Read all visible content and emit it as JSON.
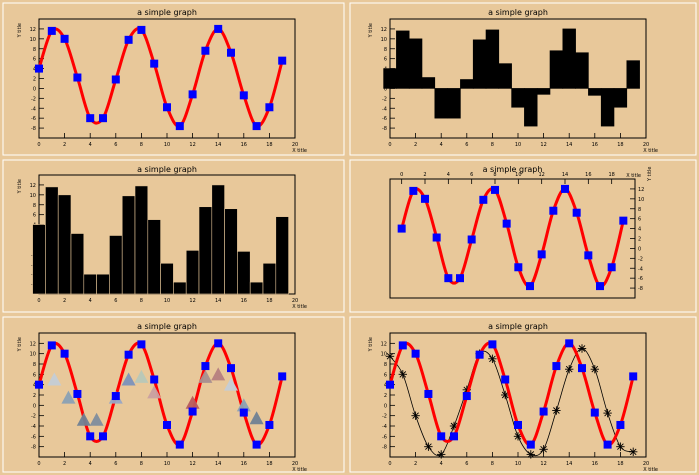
{
  "canvas": {
    "background": "#e8c89a",
    "frame_color": "#ffffff"
  },
  "style": {
    "curve_color": "#ff0000",
    "marker_color": "#0000ff",
    "bar_color": "#000000",
    "star_color": "#000000",
    "triangle_colors": [
      "#c4ced6",
      "#8aa1b4",
      "#6f8193",
      "#7f8d9d",
      "#98a6c5",
      "#7b92bb",
      "#b7c8b8",
      "#c9a0a0",
      "#b85c5c",
      "#a88f8f",
      "#b68080"
    ]
  },
  "chart_data": [
    {
      "type": "line",
      "title": "a simple graph",
      "xlabel": "X title",
      "ylabel": "Y title",
      "xlim": [
        0,
        20
      ],
      "ylim": [
        -10,
        14
      ],
      "xticks": [
        "0",
        "2",
        "4",
        "6",
        "8",
        "10",
        "12",
        "14",
        "16",
        "18",
        "20"
      ],
      "yticks": [
        "-8",
        "-6",
        "-4",
        "-2",
        "0",
        "2",
        "4",
        "6",
        "8",
        "10",
        "12"
      ],
      "x": [
        0.0,
        1.0,
        2.0,
        3.0,
        4.0,
        5.0,
        6.0,
        7.0,
        8.0,
        9.0,
        10.0,
        11.0,
        12.0,
        13.0,
        14.0,
        15.0,
        16.0,
        17.0,
        18.0,
        19.0
      ],
      "y": [
        4.0,
        11.6,
        10.0,
        2.2,
        -6.0,
        -6.0,
        1.8,
        9.8,
        11.8,
        5.0,
        -3.8,
        -7.6,
        -1.2,
        7.6,
        12.0,
        7.2,
        -1.4,
        -7.6,
        -3.8,
        5.6
      ],
      "series_style": "smooth red curve with blue square markers"
    },
    {
      "type": "bar",
      "title": "a simple graph",
      "xlabel": "X title",
      "ylabel": "Y title",
      "xlim": [
        0,
        20
      ],
      "ylim": [
        -10,
        14
      ],
      "xticks": [
        "0",
        "2",
        "4",
        "6",
        "8",
        "10",
        "12",
        "14",
        "16",
        "18",
        "20"
      ],
      "yticks": [
        "-8",
        "-6",
        "-4",
        "-2",
        "0",
        "2",
        "4",
        "6",
        "8",
        "10",
        "12"
      ],
      "x": [
        0.0,
        1.0,
        2.0,
        3.0,
        4.0,
        5.0,
        6.0,
        7.0,
        8.0,
        9.0,
        10.0,
        11.0,
        12.0,
        13.0,
        14.0,
        15.0,
        16.0,
        17.0,
        18.0,
        19.0
      ],
      "values": [
        4.0,
        11.6,
        10.0,
        2.2,
        -6.0,
        -6.0,
        1.8,
        9.8,
        11.8,
        5.0,
        -3.8,
        -7.6,
        -1.2,
        7.6,
        12.0,
        7.2,
        -1.4,
        -7.6,
        -3.8,
        5.6
      ],
      "bar_base": 0,
      "series_style": "black bars from y=0"
    },
    {
      "type": "bar",
      "title": "a simple graph",
      "xlabel": "X title",
      "ylabel": "Y title",
      "xlim": [
        0,
        20
      ],
      "ylim": [
        -10,
        14
      ],
      "xticks": [
        "0",
        "2",
        "4",
        "6",
        "8",
        "10",
        "12",
        "14",
        "16",
        "18",
        "20"
      ],
      "yticks": [
        "-8",
        "-6",
        "-4",
        "-2",
        "0",
        "2",
        "4",
        "6",
        "8",
        "10",
        "12"
      ],
      "x": [
        0.0,
        1.0,
        2.0,
        3.0,
        4.0,
        5.0,
        6.0,
        7.0,
        8.0,
        9.0,
        10.0,
        11.0,
        12.0,
        13.0,
        14.0,
        15.0,
        16.0,
        17.0,
        18.0,
        19.0
      ],
      "values": [
        4.0,
        11.6,
        10.0,
        2.2,
        -6.0,
        -6.0,
        1.8,
        9.8,
        11.8,
        5.0,
        -3.8,
        -7.6,
        -1.2,
        7.6,
        12.0,
        7.2,
        -1.4,
        -7.6,
        -3.8,
        5.6
      ],
      "bar_base": -10,
      "series_style": "black bars from axis bottom with thin separators"
    },
    {
      "type": "line",
      "title": "a simple graph",
      "xlabel": "X title",
      "ylabel": "Y title",
      "xlim": [
        -1,
        20
      ],
      "ylim": [
        -10,
        14
      ],
      "xaxis_position": "top",
      "yaxis_position": "right",
      "xticks": [
        "0",
        "2",
        "4",
        "6",
        "8",
        "10",
        "12",
        "14",
        "16",
        "18"
      ],
      "yticks": [
        "-8",
        "-6",
        "-4",
        "-2",
        "0",
        "2",
        "4",
        "6",
        "8",
        "10",
        "12"
      ],
      "x": [
        0.0,
        1.0,
        2.0,
        3.0,
        4.0,
        5.0,
        6.0,
        7.0,
        8.0,
        9.0,
        10.0,
        11.0,
        12.0,
        13.0,
        14.0,
        15.0,
        16.0,
        17.0,
        18.0,
        19.0
      ],
      "y": [
        4.0,
        11.6,
        10.0,
        2.2,
        -6.0,
        -6.0,
        1.8,
        9.8,
        11.8,
        5.0,
        -3.8,
        -7.6,
        -1.2,
        7.6,
        12.0,
        7.2,
        -1.4,
        -7.6,
        -3.8,
        5.6
      ],
      "series_style": "smooth red curve with blue square markers"
    },
    {
      "type": "line",
      "title": "a simple graph",
      "xlabel": "X title",
      "ylabel": "Y title",
      "xlim": [
        0,
        20
      ],
      "ylim": [
        -10,
        14
      ],
      "xticks": [
        "0",
        "2",
        "4",
        "6",
        "8",
        "10",
        "12",
        "14",
        "16",
        "18",
        "20"
      ],
      "yticks": [
        "-8",
        "-6",
        "-4",
        "-2",
        "0",
        "2",
        "4",
        "6",
        "8",
        "10",
        "12"
      ],
      "x": [
        0.0,
        1.0,
        2.0,
        3.0,
        4.0,
        5.0,
        6.0,
        7.0,
        8.0,
        9.0,
        10.0,
        11.0,
        12.0,
        13.0,
        14.0,
        15.0,
        16.0,
        17.0,
        18.0,
        19.0
      ],
      "y": [
        4.0,
        11.6,
        10.0,
        2.2,
        -6.0,
        -6.0,
        1.8,
        9.8,
        11.8,
        5.0,
        -3.8,
        -7.6,
        -1.2,
        7.6,
        12.0,
        7.2,
        -1.4,
        -7.6,
        -3.8,
        5.6
      ],
      "series_style": "smooth red curve with blue square markers",
      "scatter": {
        "x": [
          1.2,
          2.3,
          3.5,
          4.5,
          6.0,
          7.0,
          8.0,
          9.0,
          12.0,
          13.0,
          14.0,
          15.0,
          16.0,
          17.0
        ],
        "y": [
          5.0,
          1.5,
          -2.8,
          -2.8,
          1.5,
          5.0,
          5.5,
          2.5,
          0.5,
          5.5,
          6.0,
          4.0,
          0.0,
          -2.5
        ],
        "marker": "triangle"
      }
    },
    {
      "type": "line",
      "title": "a simple graph",
      "xlabel": "X title",
      "ylabel": "Y title",
      "xlim": [
        0,
        20
      ],
      "ylim": [
        -10,
        14
      ],
      "xticks": [
        "0",
        "2",
        "4",
        "6",
        "8",
        "10",
        "12",
        "14",
        "16",
        "18",
        "20"
      ],
      "yticks": [
        "-8",
        "-6",
        "-4",
        "-2",
        "0",
        "2",
        "4",
        "6",
        "8",
        "10",
        "12"
      ],
      "x": [
        0.0,
        1.0,
        2.0,
        3.0,
        4.0,
        5.0,
        6.0,
        7.0,
        8.0,
        9.0,
        10.0,
        11.0,
        12.0,
        13.0,
        14.0,
        15.0,
        16.0,
        17.0,
        18.0,
        19.0
      ],
      "y": [
        4.0,
        11.6,
        10.0,
        2.2,
        -6.0,
        -6.0,
        1.8,
        9.8,
        11.8,
        5.0,
        -3.8,
        -7.6,
        -1.2,
        7.6,
        12.0,
        7.2,
        -1.4,
        -7.6,
        -3.8,
        5.6
      ],
      "series_style": "smooth red curve with blue square markers",
      "series2": {
        "x": [
          0.0,
          1.0,
          2.0,
          3.0,
          4.0,
          5.0,
          6.0,
          7.0,
          8.0,
          9.0,
          10.0,
          11.0,
          12.0,
          13.0,
          14.0,
          15.0,
          16.0,
          17.0,
          18.0,
          19.0
        ],
        "y": [
          9.5,
          6.0,
          -2.0,
          -8.0,
          -9.5,
          -4.0,
          3.0,
          10.0,
          9.0,
          2.0,
          -6.0,
          -9.5,
          -8.5,
          -1.0,
          7.0,
          11.0,
          7.0,
          -1.5,
          -8.0,
          -9.0
        ],
        "style": "thin black line with star markers"
      }
    }
  ]
}
